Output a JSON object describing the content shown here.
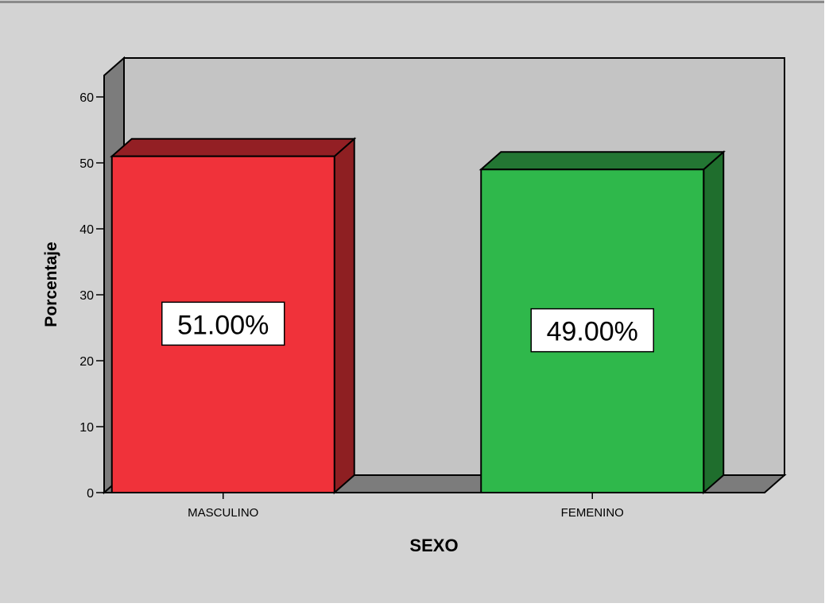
{
  "chart_data": {
    "type": "bar",
    "style": "3d",
    "categories": [
      "MASCULINO",
      "FEMENINO"
    ],
    "values": [
      51.0,
      49.0
    ],
    "data_labels": [
      "51.00%",
      "49.00%"
    ],
    "xlabel": "SEXO",
    "ylabel": "Porcentaje",
    "ylim": [
      0,
      60
    ],
    "yticks": [
      "0",
      "10",
      "20",
      "30",
      "40",
      "50",
      "60"
    ],
    "grid": false,
    "colors": {
      "bar_front": [
        "#f0323a",
        "#2fb84b"
      ],
      "bar_side": [
        "#8e1f22",
        "#1f6e2d"
      ],
      "bar_top": [
        "#931f24",
        "#237633"
      ],
      "plot_back": "#c4c4c4",
      "plot_wall": "#7c7c7c",
      "background": "#d3d3d3"
    }
  }
}
